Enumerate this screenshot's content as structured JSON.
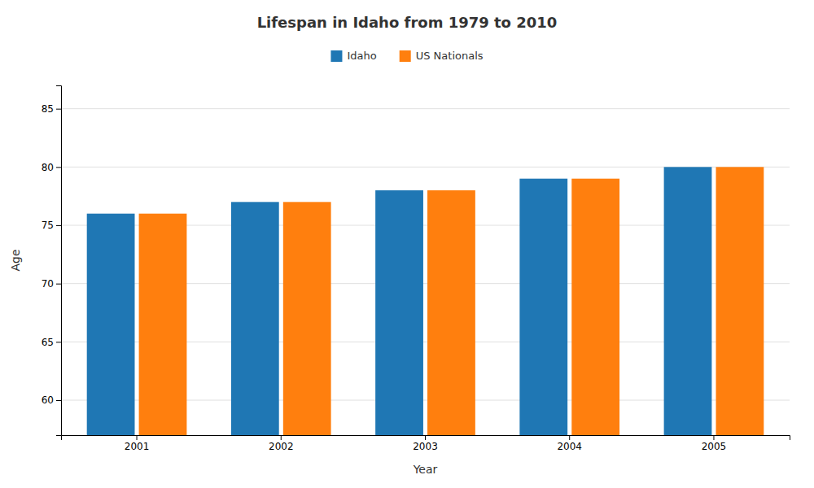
{
  "chart_data": {
    "type": "bar",
    "title": "Lifespan in Idaho from 1979 to 2010",
    "x_label": "Year",
    "y_label": "Age",
    "categories": [
      "2001",
      "2002",
      "2003",
      "2004",
      "2005"
    ],
    "series": [
      {
        "name": "Idaho",
        "values": [
          76,
          77,
          78,
          79,
          80
        ]
      },
      {
        "name": "US Nationals",
        "values": [
          76,
          77,
          78,
          79,
          80
        ]
      }
    ],
    "ylim": [
      57,
      87
    ],
    "yticks": [
      60,
      65,
      70,
      75,
      80,
      85
    ],
    "grid": true,
    "legend": "top"
  }
}
